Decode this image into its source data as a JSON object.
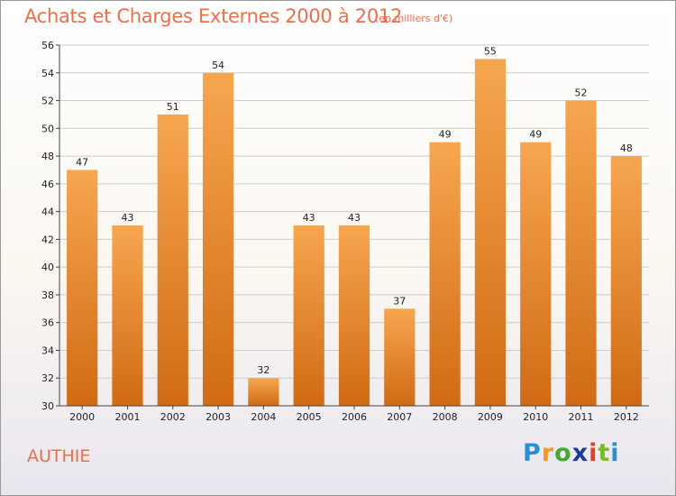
{
  "header": {
    "title": "Achats et Charges Externes 2000 à 2012",
    "subtitle": "(en milliers d'€)"
  },
  "footer": {
    "commune": "AUTHIE",
    "logo_text": "Proxiti"
  },
  "colors": {
    "bar_top": "#f7a650",
    "bar_bottom": "#d06b14",
    "title": "#e96f4d",
    "grid": "#cccccc"
  },
  "chart_data": {
    "type": "bar",
    "title": "Achats et Charges Externes 2000 à 2012",
    "subtitle": "(en milliers d'€)",
    "xlabel": "",
    "ylabel": "",
    "categories": [
      "2000",
      "2001",
      "2002",
      "2003",
      "2004",
      "2005",
      "2006",
      "2007",
      "2008",
      "2009",
      "2010",
      "2011",
      "2012"
    ],
    "values": [
      47,
      43,
      51,
      54,
      32,
      43,
      43,
      37,
      49,
      55,
      49,
      52,
      48
    ],
    "ylim": [
      30,
      56
    ],
    "yticks": [
      30,
      32,
      34,
      36,
      38,
      40,
      42,
      44,
      46,
      48,
      50,
      52,
      54,
      56
    ],
    "grid": true,
    "legend": "none"
  }
}
